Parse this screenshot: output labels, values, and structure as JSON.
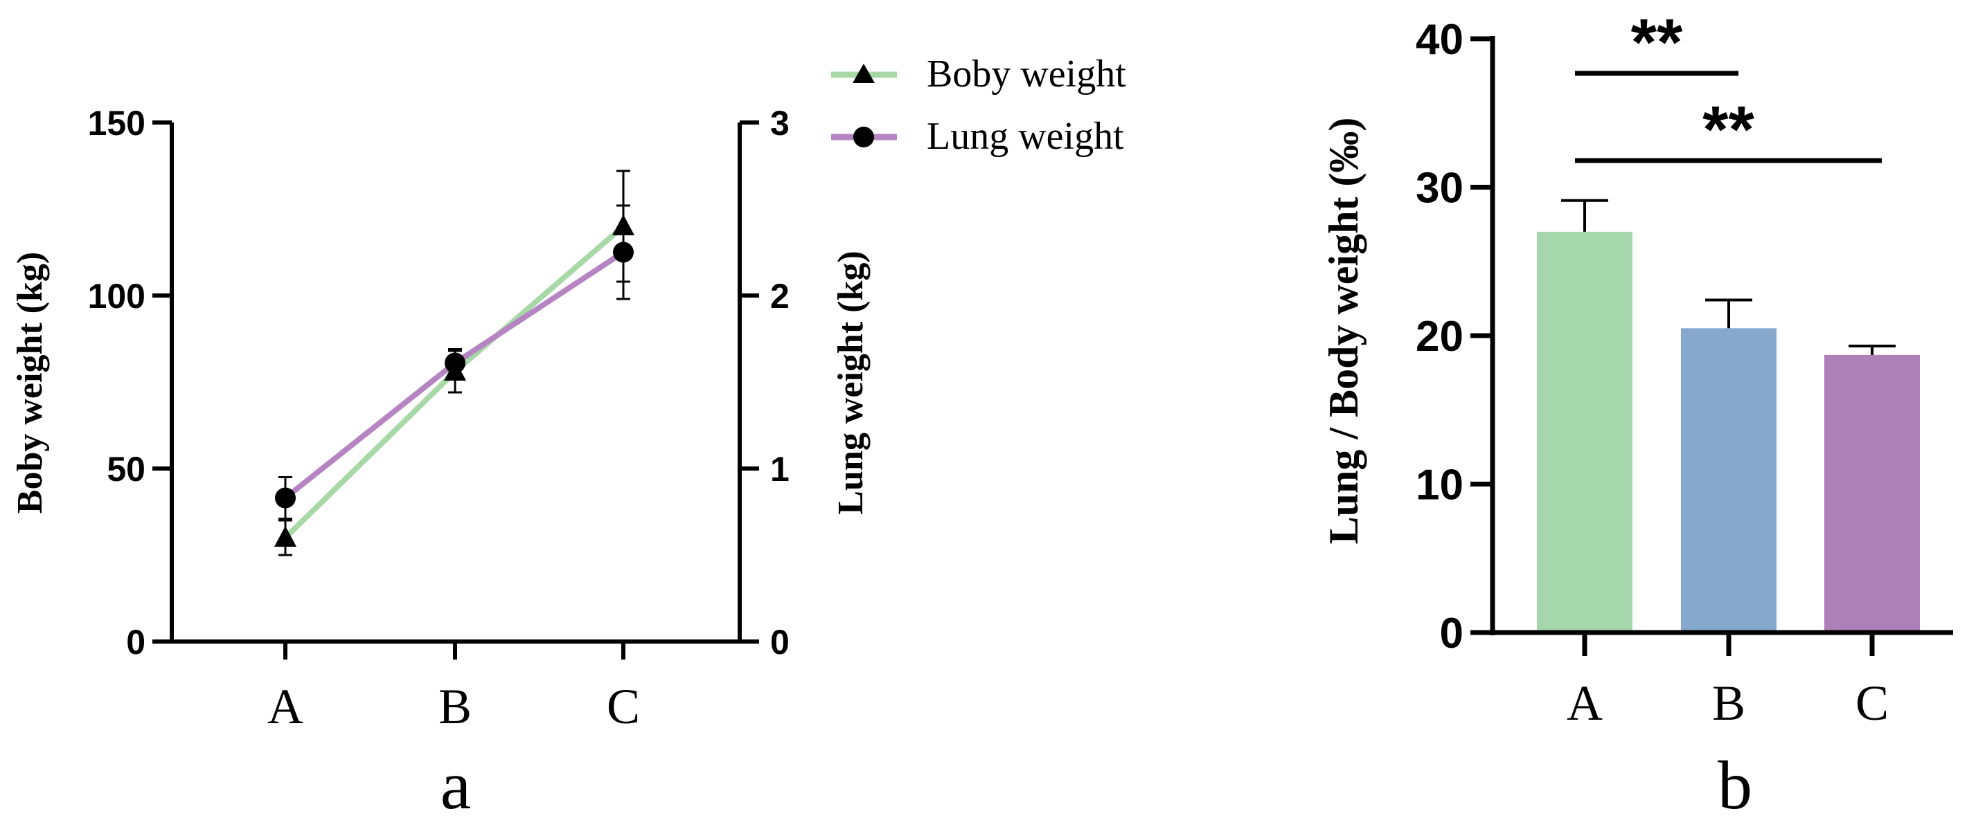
{
  "chart_data": [
    {
      "type": "line",
      "panel_label": "a",
      "categories": [
        "A",
        "B",
        "C"
      ],
      "ylabel_left": "Boby weight (kg)",
      "ylabel_right": "Lung weight (kg)",
      "ylim_left": [
        0,
        150
      ],
      "ylim_right": [
        0,
        3
      ],
      "yticks_left": [
        "0",
        "50",
        "100",
        "150"
      ],
      "yticks_right": [
        "0",
        "1",
        "2",
        "3"
      ],
      "grid": false,
      "legend_position": "top-right",
      "series": [
        {
          "name": "Boby weight",
          "axis": "left",
          "marker": "triangle",
          "color": "#a8d8a8",
          "values": [
            30,
            78,
            120
          ],
          "errors": [
            5,
            6,
            16
          ]
        },
        {
          "name": "Lung weight",
          "axis": "right",
          "marker": "circle",
          "color": "#b585c2",
          "values": [
            0.83,
            1.61,
            2.25
          ],
          "errors": [
            0.12,
            0.08,
            0.27
          ]
        }
      ]
    },
    {
      "type": "bar",
      "panel_label": "b",
      "categories": [
        "A",
        "B",
        "C"
      ],
      "values": [
        27.0,
        20.5,
        18.7
      ],
      "errors": [
        2.1,
        1.9,
        0.6
      ],
      "colors": [
        "#a6d7ac",
        "#86a8cc",
        "#ad80b8"
      ],
      "ylabel": "Lung / Body weight (‰)",
      "ylim": [
        0,
        40
      ],
      "yticks": [
        "0",
        "10",
        "20",
        "30",
        "40"
      ],
      "grid": false,
      "significance": [
        {
          "from": "A",
          "to": "B",
          "label": "**"
        },
        {
          "from": "A",
          "to": "C",
          "label": "**"
        }
      ]
    }
  ]
}
